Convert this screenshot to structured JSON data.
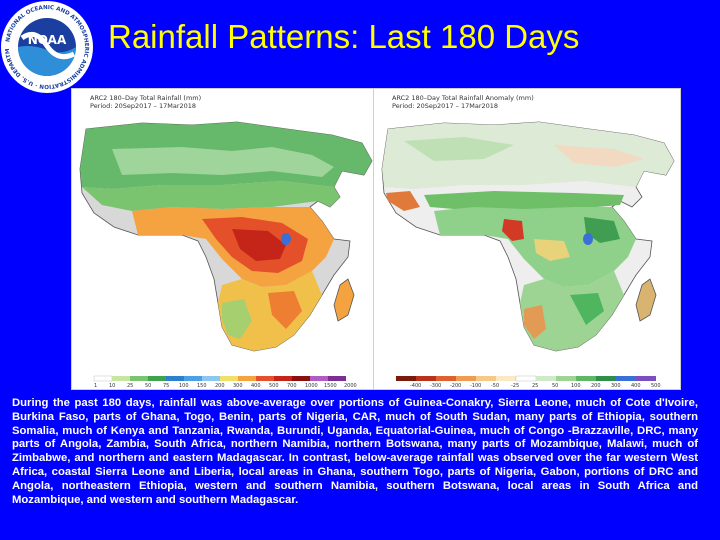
{
  "header": {
    "title": "Rainfall Patterns: Last 180 Days",
    "logo_text": "NOAA",
    "logo_ring_text": "NATIONAL OCEANIC AND ATMOSPHERIC ADMINISTRATION · U.S. DEPARTMENT OF COMMERCE"
  },
  "maps": {
    "left": {
      "title": "ARC2 180–Day Total Rainfall (mm)",
      "period": "Period: 20Sep2017 – 17Mar2018",
      "legend_ticks": [
        "1",
        "10",
        "25",
        "50",
        "75",
        "100",
        "150",
        "200",
        "300",
        "400",
        "500",
        "700",
        "1000",
        "1500",
        "2000"
      ]
    },
    "right": {
      "title": "ARC2 180–Day Total Rainfall Anomaly (mm)",
      "period": "Period: 20Sep2017 – 17Mar2018",
      "legend_ticks": [
        "-400",
        "-300",
        "-200",
        "-100",
        "-50",
        "-25",
        "25",
        "50",
        "100",
        "200",
        "300",
        "400",
        "500"
      ]
    }
  },
  "colors": {
    "background": "#0000ff",
    "title": "#ffff00",
    "caption": "#ffffff"
  },
  "caption": "During the past 180 days, rainfall was above-average over portions of Guinea-Conakry, Sierra Leone, much of Cote d'Ivoire, Burkina Faso, parts of Ghana, Togo, Benin, parts of Nigeria, CAR, much of South Sudan, many parts of Ethiopia, southern Somalia, much of Kenya and Tanzania, Rwanda, Burundi, Uganda, Equatorial-Guinea, much of Congo -Brazzaville, DRC, many parts of Angola, Zambia, South Africa, northern Namibia, northern Botswana, many parts of Mozambique, Malawi, much of Zimbabwe, and northern and eastern Madagascar. In contrast, below-average rainfall was observed over the far western West Africa, coastal Sierra Leone and Liberia, local areas in Ghana, southern Togo, parts of Nigeria, Gabon, portions of DRC and Angola, northeastern Ethiopia, western and southern Namibia, southern Botswana, local areas in South Africa and Mozambique, and western and southern Madagascar."
}
